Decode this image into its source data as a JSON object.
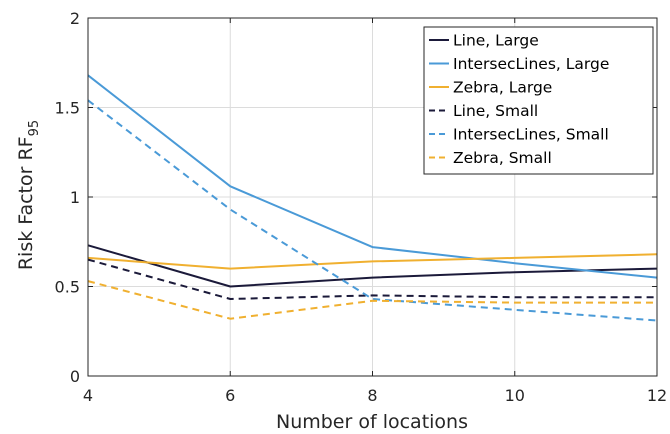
{
  "chart_data": {
    "type": "line",
    "xlabel": "Number of locations",
    "ylabel": "Risk Factor RF",
    "ylabel_subscript": "95",
    "xlim": [
      4,
      12
    ],
    "ylim": [
      0,
      2
    ],
    "xticks": [
      "4",
      "6",
      "8",
      "10",
      "12"
    ],
    "yticks": [
      "0",
      "0.5",
      "1",
      "1.5",
      "2"
    ],
    "grid": true,
    "legend_position": "top-right",
    "x": [
      4,
      6,
      8,
      10,
      12
    ],
    "series": [
      {
        "name": "Line, Large",
        "values": [
          0.73,
          0.5,
          0.55,
          0.58,
          0.6
        ],
        "color": "#1b1a3a",
        "dash": "solid"
      },
      {
        "name": "IntersecLines, Large",
        "values": [
          1.68,
          1.06,
          0.72,
          0.63,
          0.55
        ],
        "color": "#4a9ad7",
        "dash": "solid"
      },
      {
        "name": "Zebra, Large",
        "values": [
          0.66,
          0.6,
          0.64,
          0.66,
          0.68
        ],
        "color": "#f0b030",
        "dash": "solid"
      },
      {
        "name": "Line, Small",
        "values": [
          0.65,
          0.43,
          0.45,
          0.44,
          0.44
        ],
        "color": "#1b1a3a",
        "dash": "dashed"
      },
      {
        "name": "IntersecLines, Small",
        "values": [
          1.54,
          0.93,
          0.43,
          0.37,
          0.31
        ],
        "color": "#4a9ad7",
        "dash": "dashed"
      },
      {
        "name": "Zebra, Small",
        "values": [
          0.53,
          0.32,
          0.42,
          0.41,
          0.41
        ],
        "color": "#f0b030",
        "dash": "dashed"
      }
    ]
  }
}
